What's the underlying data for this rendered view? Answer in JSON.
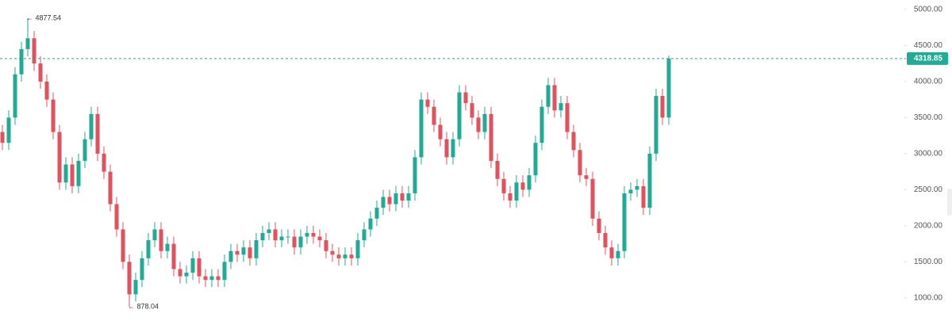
{
  "chart_data": {
    "type": "candlestick",
    "open": [
      3300,
      3150,
      3500,
      4100,
      4450,
      4600,
      4250,
      4000,
      3750,
      3300,
      2600,
      2850,
      2550,
      2900,
      3200,
      3550,
      3000,
      2750,
      2300,
      1950,
      1500,
      1050,
      1250,
      1550,
      1800,
      1950,
      1650,
      1750,
      1400,
      1300,
      1350,
      1550,
      1300,
      1250,
      1300,
      1250,
      1500,
      1650,
      1600,
      1700,
      1550,
      1800,
      1900,
      1950,
      1800,
      1850,
      1850,
      1700,
      1850,
      1900,
      1850,
      1800,
      1650,
      1600,
      1550,
      1600,
      1550,
      1800,
      1950,
      2100,
      2250,
      2400,
      2300,
      2450,
      2350,
      2450,
      2950,
      3750,
      3650,
      3400,
      3200,
      2950,
      3200,
      3850,
      3700,
      3500,
      3300,
      3550,
      2900,
      2650,
      2450,
      2350,
      2600,
      2500,
      2700,
      3150,
      3650,
      3950,
      3600,
      3700,
      3300,
      3050,
      2700,
      2650,
      2100,
      1900,
      1700,
      1550,
      1650,
      2450,
      2500,
      2550,
      2250,
      3000,
      3800,
      3500
    ],
    "high": [
      3400,
      3600,
      4200,
      4550,
      4877.54,
      4700,
      4350,
      4100,
      3850,
      3400,
      2950,
      2950,
      3000,
      3300,
      3650,
      3650,
      3100,
      2850,
      2400,
      2050,
      1600,
      1350,
      1650,
      1900,
      2050,
      2050,
      1850,
      1850,
      1500,
      1450,
      1650,
      1650,
      1400,
      1400,
      1400,
      1600,
      1750,
      1750,
      1800,
      1800,
      1900,
      2000,
      2050,
      2050,
      1950,
      1950,
      1950,
      1950,
      2000,
      2000,
      1950,
      1900,
      1750,
      1700,
      1700,
      1700,
      1900,
      2050,
      2200,
      2350,
      2500,
      2500,
      2550,
      2550,
      2550,
      3050,
      3850,
      3850,
      3750,
      3500,
      3300,
      3300,
      3950,
      3950,
      3800,
      3600,
      3650,
      3650,
      3000,
      2750,
      2550,
      2700,
      2700,
      2800,
      3250,
      3750,
      4050,
      4050,
      3800,
      3800,
      3400,
      3150,
      2800,
      2750,
      2200,
      2000,
      1800,
      1750,
      2550,
      2600,
      2650,
      2650,
      3100,
      3900,
      3900,
      4360
    ],
    "low": [
      3050,
      3050,
      3400,
      4000,
      4350,
      4150,
      3900,
      3650,
      3200,
      2500,
      2500,
      2450,
      2450,
      2800,
      3100,
      2900,
      2650,
      2200,
      1850,
      1400,
      878.04,
      950,
      1150,
      1450,
      1700,
      1550,
      1550,
      1300,
      1200,
      1200,
      1250,
      1200,
      1150,
      1150,
      1150,
      1150,
      1400,
      1500,
      1500,
      1450,
      1450,
      1700,
      1800,
      1700,
      1700,
      1750,
      1600,
      1600,
      1750,
      1750,
      1700,
      1550,
      1500,
      1450,
      1450,
      1450,
      1450,
      1700,
      1850,
      2000,
      2150,
      2200,
      2200,
      2250,
      2250,
      2350,
      2850,
      3550,
      3300,
      3100,
      2850,
      2850,
      3100,
      3600,
      3400,
      3200,
      3200,
      2800,
      2550,
      2350,
      2250,
      2250,
      2400,
      2400,
      2600,
      3050,
      3550,
      3500,
      3500,
      3200,
      2950,
      2600,
      2550,
      2000,
      1800,
      1600,
      1450,
      1450,
      1550,
      2350,
      2400,
      2150,
      2150,
      2900,
      3400,
      3400
    ],
    "close": [
      3150,
      3500,
      4100,
      4450,
      4600,
      4250,
      4000,
      3750,
      3300,
      2600,
      2850,
      2550,
      2900,
      3200,
      3550,
      3000,
      2750,
      2300,
      1950,
      1500,
      1050,
      1250,
      1550,
      1800,
      1950,
      1650,
      1750,
      1400,
      1300,
      1350,
      1550,
      1300,
      1250,
      1300,
      1250,
      1500,
      1650,
      1600,
      1700,
      1550,
      1800,
      1900,
      1950,
      1800,
      1850,
      1850,
      1700,
      1850,
      1900,
      1850,
      1800,
      1650,
      1600,
      1550,
      1600,
      1550,
      1800,
      1950,
      2100,
      2250,
      2400,
      2300,
      2450,
      2350,
      2450,
      2950,
      3750,
      3650,
      3400,
      3200,
      2950,
      3200,
      3850,
      3700,
      3500,
      3300,
      3550,
      2900,
      2650,
      2450,
      2350,
      2600,
      2500,
      2700,
      3150,
      3650,
      3950,
      3600,
      3700,
      3300,
      3050,
      2700,
      2650,
      2100,
      1900,
      1700,
      1550,
      1650,
      2450,
      2500,
      2550,
      2250,
      3000,
      3800,
      3500,
      4318.85
    ],
    "up_color": "#22ab94",
    "down_color": "#e4505c",
    "ylim": [
      680,
      5130
    ],
    "yticks": [
      {
        "value": 1000,
        "label": "1000.00"
      },
      {
        "value": 1500,
        "label": "1500.00"
      },
      {
        "value": 2000,
        "label": "2000.00"
      },
      {
        "value": 2500,
        "label": "2500.00"
      },
      {
        "value": 3000,
        "label": "3000.00"
      },
      {
        "value": 3500,
        "label": "3500.00"
      },
      {
        "value": 4000,
        "label": "4000.00"
      },
      {
        "value": 4500,
        "label": "4500.00"
      },
      {
        "value": 5000,
        "label": "5000.00"
      }
    ],
    "last_price": {
      "value": 4318.85,
      "label": "4318.85"
    },
    "annotations": [
      {
        "text": "← 4877.54",
        "value": 4877.54
      },
      {
        "text": "← 878.04",
        "value": 878.04
      }
    ]
  }
}
